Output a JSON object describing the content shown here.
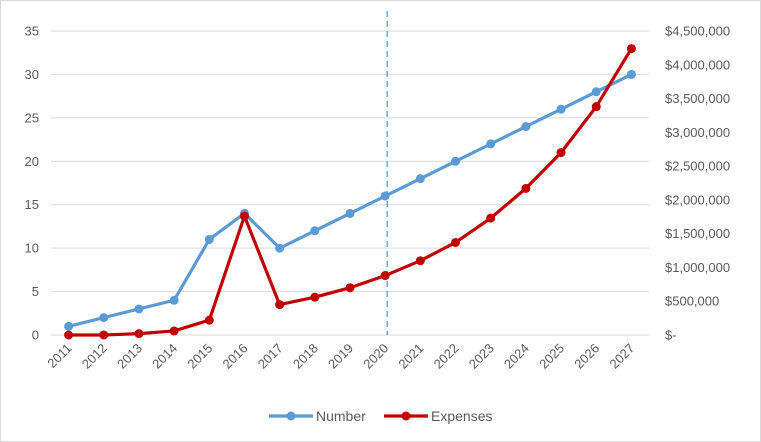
{
  "chart_data": {
    "type": "line",
    "categories": [
      "2011",
      "2012",
      "2013",
      "2014",
      "2015",
      "2016",
      "2017",
      "2018",
      "2019",
      "2020",
      "2021",
      "2022",
      "2023",
      "2024",
      "2025",
      "2026",
      "2027"
    ],
    "series": [
      {
        "name": "Number",
        "axis": "left",
        "color": "#5b9bd5",
        "values": [
          1,
          2,
          3,
          4,
          11,
          14,
          10,
          12,
          14,
          16,
          18,
          20,
          22,
          24,
          26,
          28,
          30
        ]
      },
      {
        "name": "Expenses",
        "axis": "right",
        "color": "#c00000",
        "values": [
          0,
          0,
          20000,
          60000,
          220000,
          1760000,
          450000,
          560000,
          700000,
          880000,
          1100000,
          1370000,
          1730000,
          2170000,
          2700000,
          3380000,
          4240000
        ]
      }
    ],
    "y_left": {
      "min": 0,
      "max": 35,
      "step": 5,
      "tick_labels": [
        "0",
        "5",
        "10",
        "15",
        "20",
        "25",
        "30",
        "35"
      ]
    },
    "y_right": {
      "min": 0,
      "max": 4500000,
      "step": 500000,
      "tick_labels": [
        "$-",
        "$500,000",
        "$1,000,000",
        "$1,500,000",
        "$2,000,000",
        "$2,500,000",
        "$3,000,000",
        "$3,500,000",
        "$4,000,000",
        "$4,500,000"
      ]
    },
    "annotation": {
      "type": "vertical-dashed-line",
      "at": "2020",
      "color": "#5b9bd5"
    },
    "grid": true,
    "legend": {
      "position": "bottom",
      "entries": [
        "Number",
        "Expenses"
      ]
    },
    "title": "",
    "xlabel": "",
    "ylabel": ""
  }
}
